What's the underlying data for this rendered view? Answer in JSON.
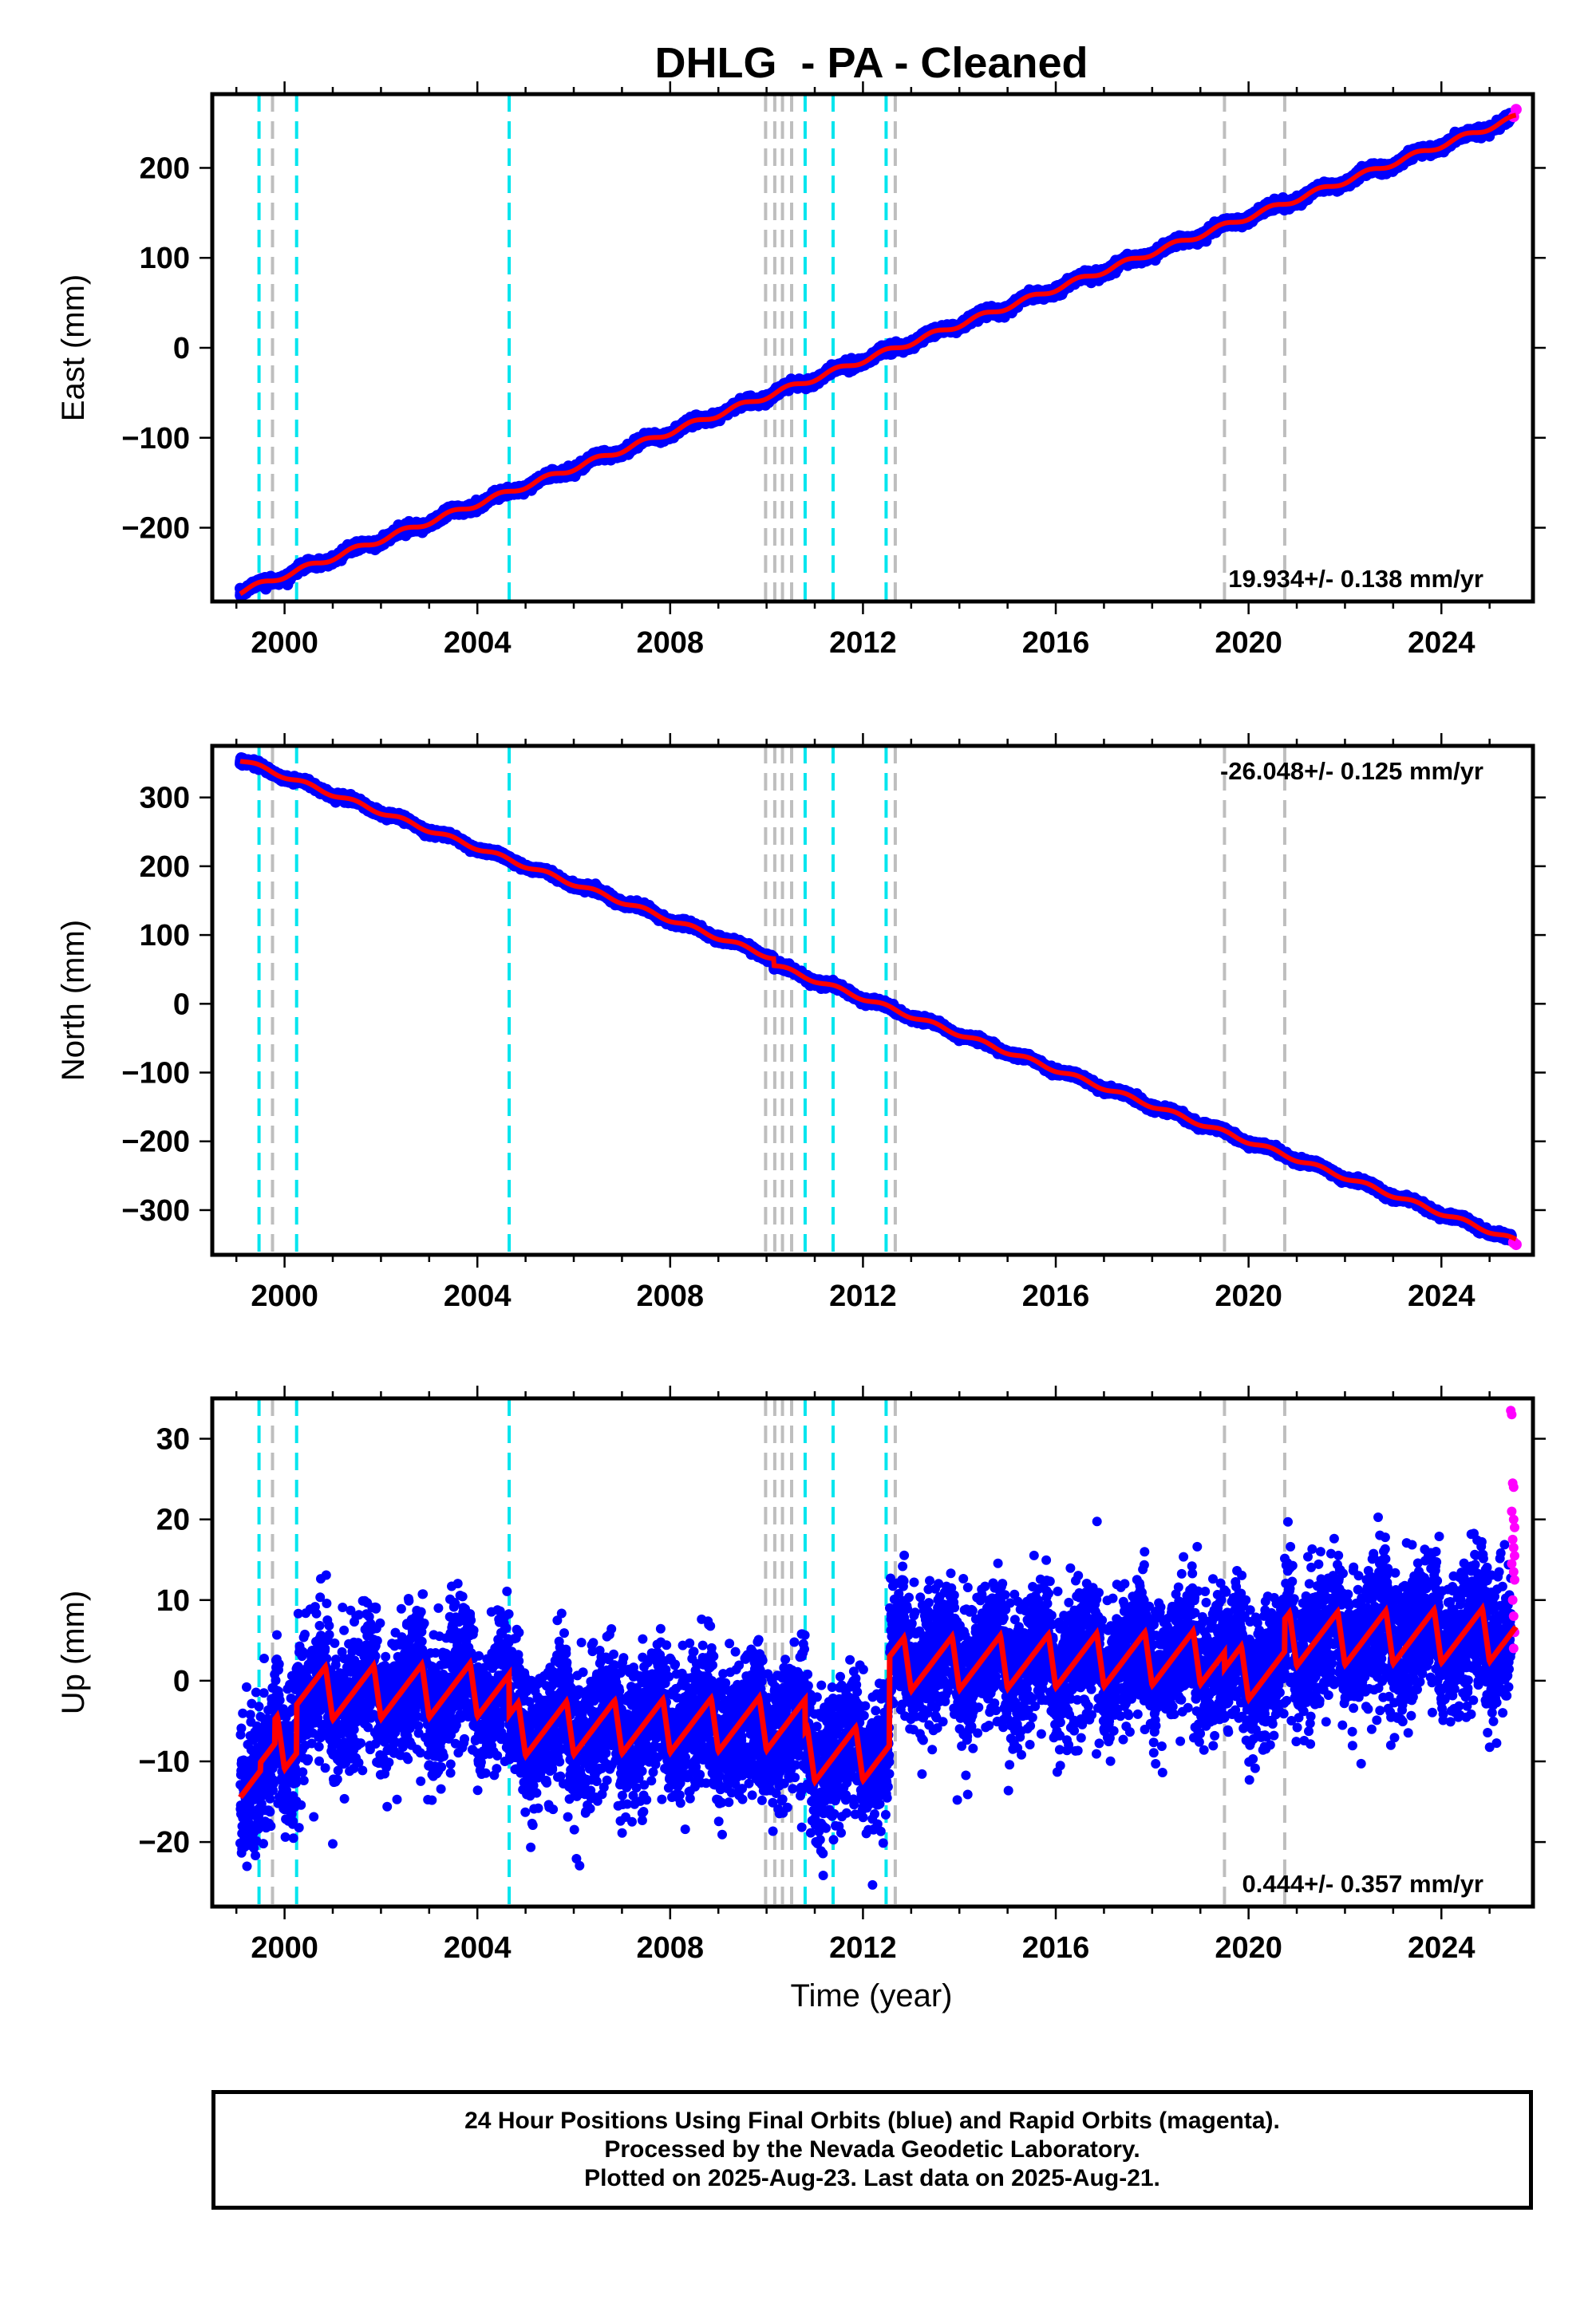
{
  "title": "DHLG  - PA - Cleaned",
  "xlabel": "Time (year)",
  "caption": [
    "24 Hour Positions Using Final Orbits (blue) and Rapid Orbits (magenta).",
    "Processed by the Nevada Geodetic Laboratory.",
    "Plotted on 2025-Aug-23. Last data on 2025-Aug-21."
  ],
  "colors": {
    "final": "#0000ff",
    "rapid": "#ff00ff",
    "model": "#ff0000",
    "equipment_change": "#00e5ee",
    "other_event": "#bebebe"
  },
  "chart_data": [
    {
      "type": "scatter",
      "panel": "east",
      "ylabel": "East (mm)",
      "rate_label": "19.934+/- 0.138 mm/yr",
      "rate_position": "bottom-right",
      "xlim": [
        1998.5,
        2025.9
      ],
      "ylim": [
        -282,
        282
      ],
      "xticks": [
        2000,
        2004,
        2008,
        2012,
        2016,
        2020,
        2024
      ],
      "yticks": [
        -200,
        -100,
        0,
        100,
        200
      ],
      "start": 1999.08,
      "end": 2025.55,
      "rapid_start": 2025.45,
      "t_ref": 2012.7,
      "rate": 19.934,
      "offset": 0,
      "series": [
        {
          "name": "Final Orbits",
          "color": "blue",
          "points": [
            [
              1999.1,
              -267
            ],
            [
              2004.5,
              -160
            ],
            [
              2008.0,
              -90
            ],
            [
              2012.0,
              -15
            ],
            [
              2016.0,
              68
            ],
            [
              2020.0,
              147
            ],
            [
              2024.0,
              228
            ],
            [
              2025.4,
              255
            ]
          ]
        },
        {
          "name": "Rapid Orbits",
          "color": "magenta",
          "points": [
            [
              2025.5,
              257
            ],
            [
              2025.55,
              265
            ]
          ]
        }
      ]
    },
    {
      "type": "scatter",
      "panel": "north",
      "ylabel": "North (mm)",
      "rate_label": "-26.048+/- 0.125 mm/yr",
      "rate_position": "top-right",
      "xlim": [
        1998.5,
        2025.9
      ],
      "ylim": [
        -365,
        375
      ],
      "xticks": [
        2000,
        2004,
        2008,
        2012,
        2016,
        2020,
        2024
      ],
      "yticks": [
        -300,
        -200,
        -100,
        0,
        100,
        200,
        300
      ],
      "start": 1999.08,
      "end": 2025.55,
      "rapid_start": 2025.45,
      "t_ref": 2012.7,
      "rate": -26.048,
      "offset": 0,
      "step": {
        "at": 2010.15,
        "size": -10
      },
      "series": [
        {
          "name": "Final Orbits",
          "color": "blue",
          "points": [
            [
              1999.1,
              366
            ],
            [
              2004.5,
              225
            ],
            [
              2008.0,
              135
            ],
            [
              2010.0,
              85
            ],
            [
              2012.0,
              15
            ],
            [
              2016.0,
              -100
            ],
            [
              2020.0,
              -205
            ],
            [
              2024.0,
              -310
            ],
            [
              2025.4,
              -345
            ]
          ]
        },
        {
          "name": "Rapid Orbits",
          "color": "magenta",
          "points": [
            [
              2025.5,
              -347
            ],
            [
              2025.55,
              -350
            ]
          ]
        }
      ]
    },
    {
      "type": "scatter",
      "panel": "up",
      "ylabel": "Up (mm)",
      "rate_label": "0.444+/- 0.357 mm/yr",
      "rate_position": "bottom-right",
      "xlim": [
        1998.5,
        2025.9
      ],
      "ylim": [
        -28,
        35
      ],
      "xticks": [
        2000,
        2004,
        2008,
        2012,
        2016,
        2020,
        2024
      ],
      "yticks": [
        -20,
        -10,
        0,
        10,
        20,
        30
      ],
      "start": 1999.08,
      "end": 2025.55,
      "rapid_start": 2025.45,
      "segments": [
        {
          "from": 1999.08,
          "to": 1999.5,
          "level": -10
        },
        {
          "from": 1999.5,
          "to": 1999.8,
          "level": -9
        },
        {
          "from": 1999.8,
          "to": 2000.25,
          "level": -6
        },
        {
          "from": 2000.25,
          "to": 2004.66,
          "level": 0
        },
        {
          "from": 2004.66,
          "to": 2010.0,
          "level": -5
        },
        {
          "from": 2010.0,
          "to": 2010.8,
          "level": -5
        },
        {
          "from": 2010.8,
          "to": 2012.55,
          "level": -9
        },
        {
          "from": 2012.55,
          "to": 2019.5,
          "level": 2
        },
        {
          "from": 2019.5,
          "to": 2020.75,
          "level": 0
        },
        {
          "from": 2020.75,
          "to": 2025.6,
          "level": 4
        }
      ],
      "annual_amplitude": 3.3,
      "scatter_sd": 4.2,
      "rapid_points": [
        [
          2025.44,
          33.5
        ],
        [
          2025.46,
          33
        ],
        [
          2025.48,
          24.5
        ],
        [
          2025.5,
          24
        ],
        [
          2025.46,
          21
        ],
        [
          2025.5,
          20
        ],
        [
          2025.52,
          19
        ],
        [
          2025.48,
          17.5
        ],
        [
          2025.5,
          16.5
        ],
        [
          2025.52,
          15.5
        ],
        [
          2025.46,
          14.5
        ],
        [
          2025.5,
          13.5
        ],
        [
          2025.52,
          12.5
        ],
        [
          2025.48,
          10
        ],
        [
          2025.5,
          8
        ],
        [
          2025.52,
          6
        ],
        [
          2025.5,
          4
        ]
      ],
      "series": [
        {
          "name": "Final Orbits",
          "color": "blue",
          "points": [
            [
              1999.1,
              -10
            ],
            [
              2001.0,
              1
            ],
            [
              2003.0,
              2
            ],
            [
              2006.0,
              -4
            ],
            [
              2010.0,
              -3
            ],
            [
              2011.5,
              -10
            ],
            [
              2014.0,
              3
            ],
            [
              2018.0,
              3
            ],
            [
              2022.0,
              5
            ],
            [
              2025.4,
              5
            ]
          ]
        },
        {
          "name": "Rapid Orbits",
          "color": "magenta",
          "points": [
            [
              2025.44,
              33.5
            ],
            [
              2025.48,
              24.5
            ],
            [
              2025.5,
              20
            ],
            [
              2025.5,
              13.5
            ],
            [
              2025.52,
              6
            ]
          ]
        }
      ]
    }
  ],
  "events_equipment": [
    1999.47,
    2000.25,
    2004.66,
    2010.8,
    2011.38,
    2012.48
  ],
  "events_other": [
    1999.75,
    2009.98,
    2010.17,
    2010.33,
    2010.52,
    2012.67,
    2019.5,
    2020.75
  ]
}
